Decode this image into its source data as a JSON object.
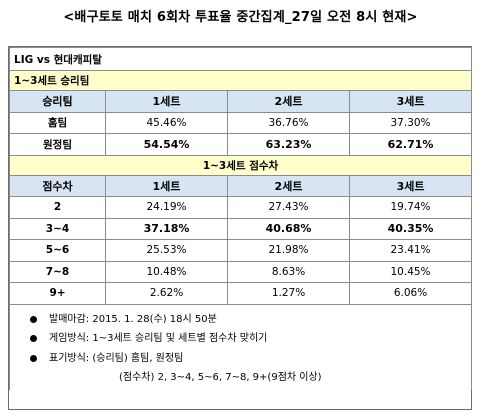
{
  "title": "<배구토토 매치 6회차 투표율 중간집계_27일 오전 8시 현재>",
  "match": "LIG vs 현대캐피탈",
  "section1": {
    "title": "1~3세트 승리팀",
    "headers": [
      "승리팀",
      "1세트",
      "2세트",
      "3세트"
    ],
    "rows": [
      {
        "label": "홈팀",
        "values": [
          "45.46%",
          "36.76%",
          "37.30%"
        ]
      },
      {
        "label": "원정팀",
        "values": [
          "54.54%",
          "63.23%",
          "62.71%"
        ]
      }
    ]
  },
  "section2": {
    "title": "1~3세트 점수차",
    "headers": [
      "점수차",
      "1세트",
      "2세트",
      "3세트"
    ],
    "rows": [
      {
        "label": "2",
        "values": [
          "24.19%",
          "27.43%",
          "19.74%"
        ]
      },
      {
        "label": "3~4",
        "values": [
          "37.18%",
          "40.68%",
          "40.35%"
        ]
      },
      {
        "label": "5~6",
        "values": [
          "25.53%",
          "21.98%",
          "23.41%"
        ]
      },
      {
        "label": "7~8",
        "values": [
          "10.48%",
          "8.63%",
          "10.45%"
        ]
      },
      {
        "label": "9+",
        "values": [
          "2.62%",
          "1.27%",
          "6.06%"
        ]
      }
    ]
  },
  "notes": [
    "발매마감: 2015. 1. 28(수) 18시 50분",
    "게임방식: 1~3세트 승리팀 및 세트별 점수차 맞히기",
    "표기방식: (승리팀) 홈팀, 원정팀"
  ],
  "note_continuation": "(점수차) 2, 3~4, 5~6, 7~8, 9+(9점차 이상)"
}
